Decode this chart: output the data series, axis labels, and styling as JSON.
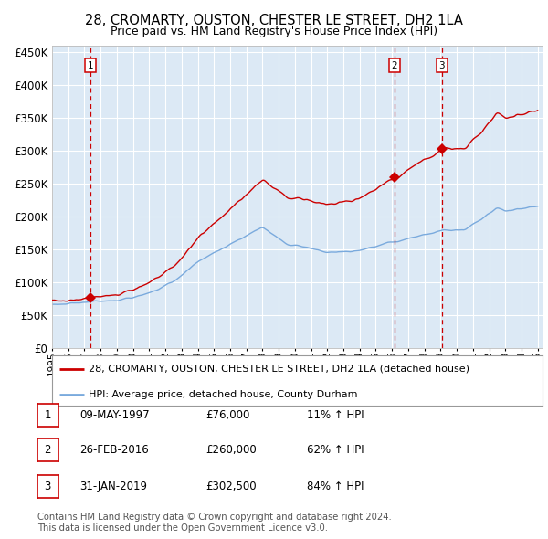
{
  "title": "28, CROMARTY, OUSTON, CHESTER LE STREET, DH2 1LA",
  "subtitle": "Price paid vs. HM Land Registry's House Price Index (HPI)",
  "legend_line1": "28, CROMARTY, OUSTON, CHESTER LE STREET, DH2 1LA (detached house)",
  "legend_line2": "HPI: Average price, detached house, County Durham",
  "sale_points": [
    {
      "label": "1",
      "date_num": 1997.37,
      "price": 76000
    },
    {
      "label": "2",
      "date_num": 2016.15,
      "price": 260000
    },
    {
      "label": "3",
      "date_num": 2019.08,
      "price": 302500
    }
  ],
  "table_rows": [
    [
      "1",
      "09-MAY-1997",
      "£76,000",
      "11% ↑ HPI"
    ],
    [
      "2",
      "26-FEB-2016",
      "£260,000",
      "62% ↑ HPI"
    ],
    [
      "3",
      "31-JAN-2019",
      "£302,500",
      "84% ↑ HPI"
    ]
  ],
  "footer": "Contains HM Land Registry data © Crown copyright and database right 2024.\nThis data is licensed under the Open Government Licence v3.0.",
  "ylim": [
    0,
    460000
  ],
  "xlim_left": 1995.0,
  "xlim_right": 2025.3,
  "plot_bg": "#dce9f5",
  "red_line_color": "#cc0000",
  "blue_line_color": "#7aaadd",
  "vline_color": "#cc0000",
  "marker_color": "#cc0000",
  "grid_color": "#ffffff"
}
